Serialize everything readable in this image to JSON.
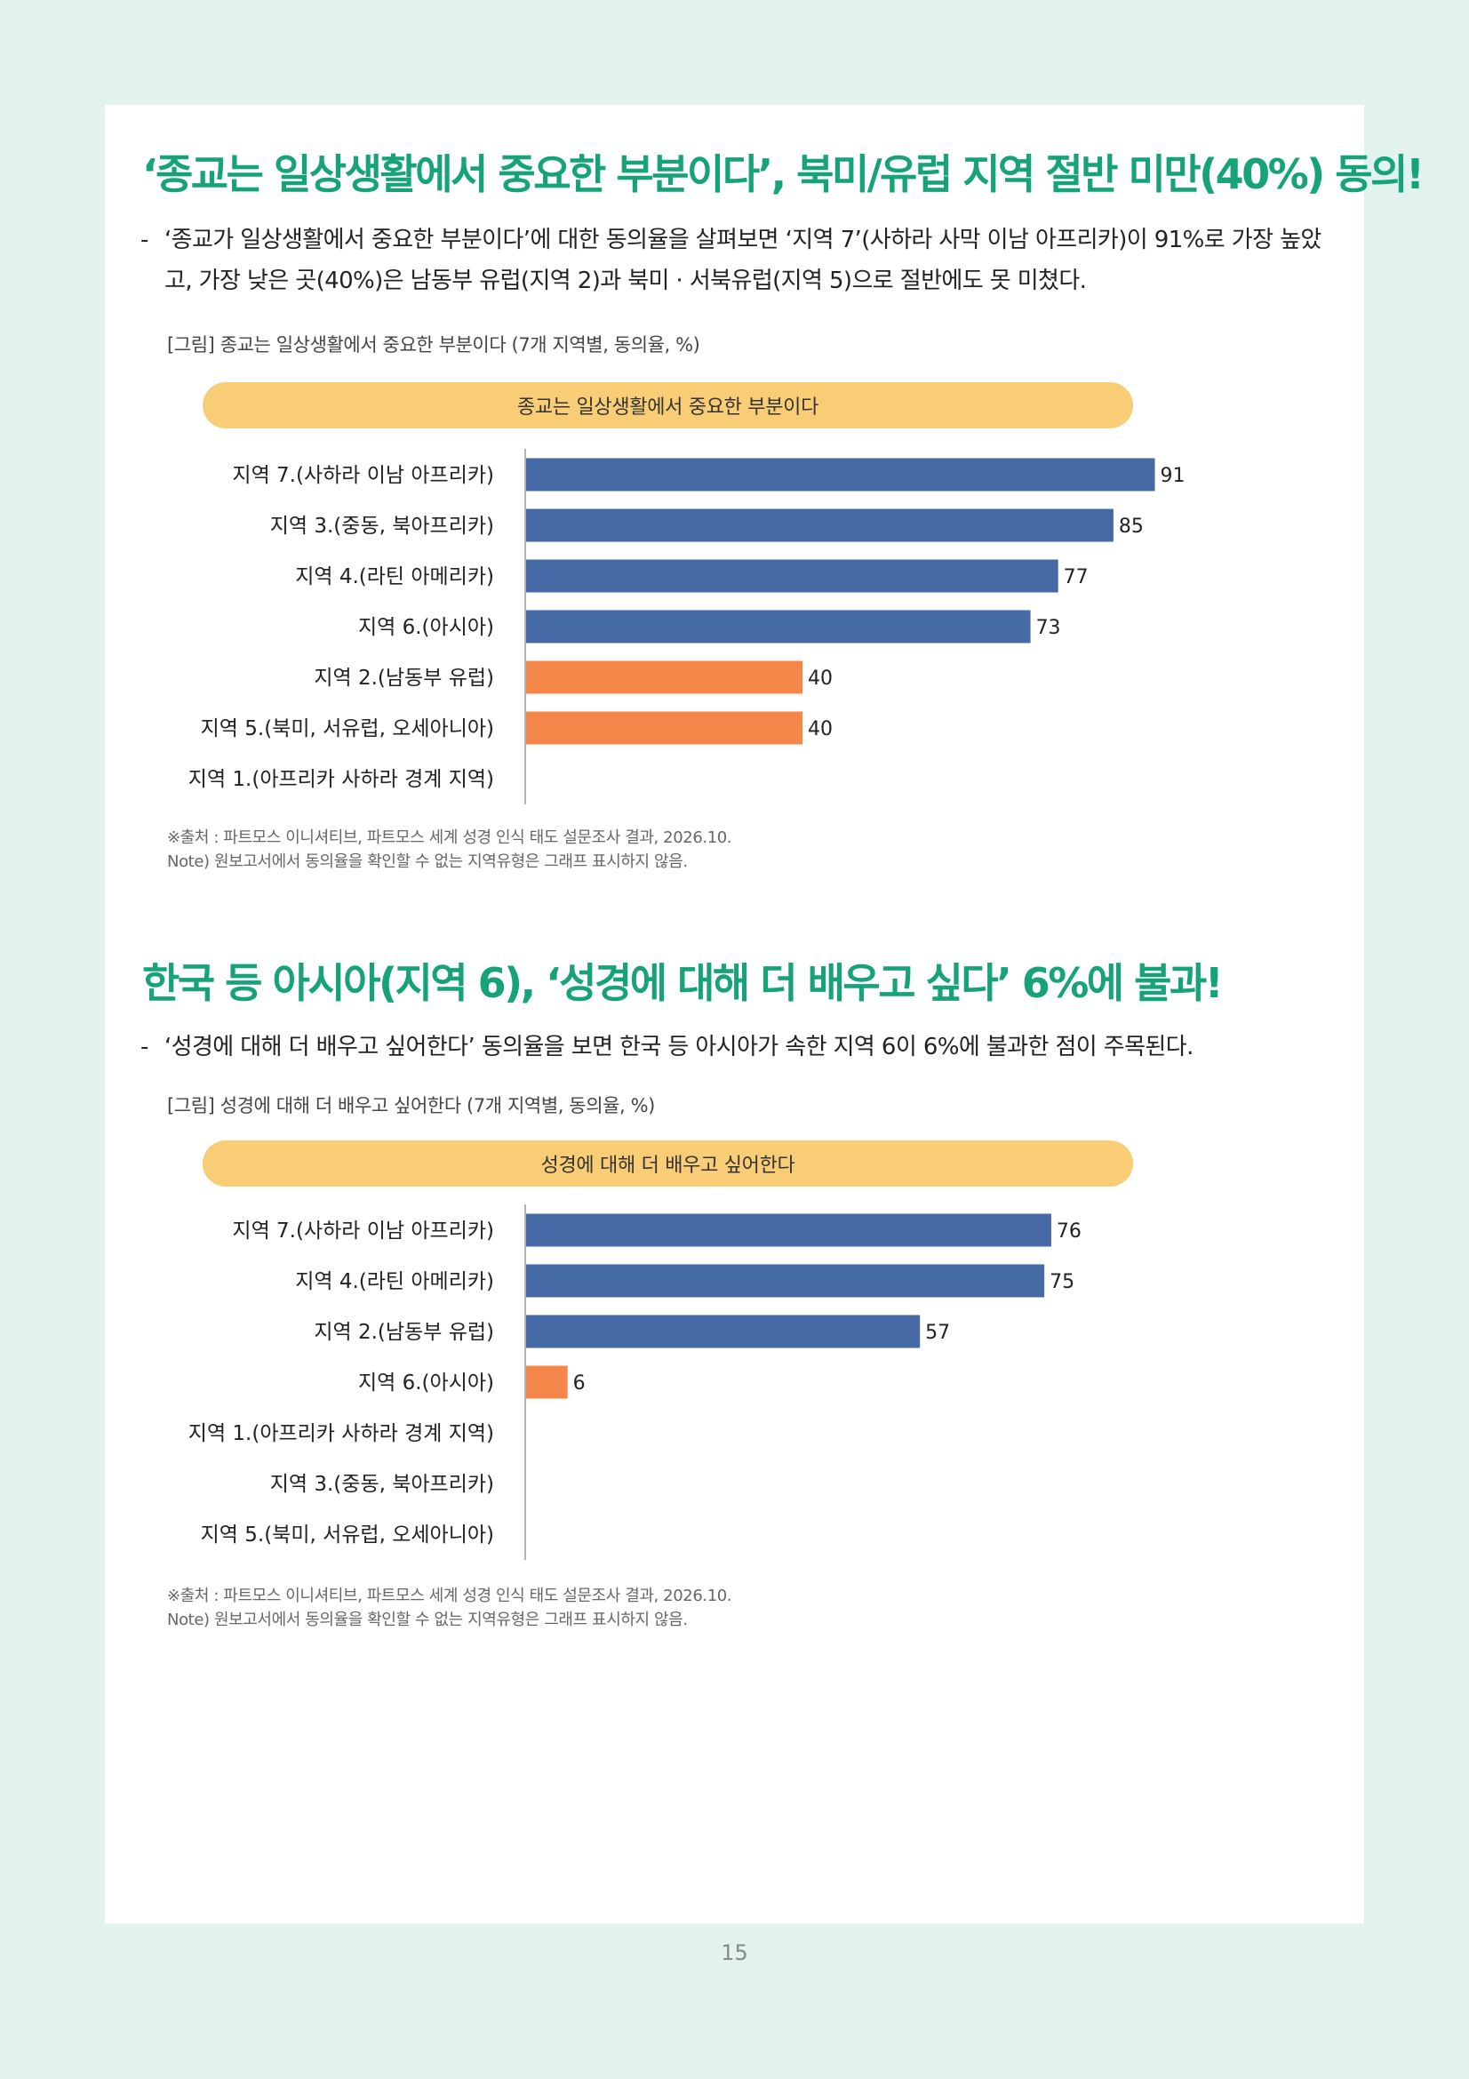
{
  "section1": {
    "heading": "‘종교는 일상생활에서 중요한 부분이다’, 북미/유럽 지역 절반 미만(40%) 동의!",
    "bullet_dash": "-",
    "body": "‘종교가 일상생활에서 중요한 부분이다’에 대한 동의율을 살펴보면 ‘지역 7’(사하라 사막 이남 아프리카)이 91%로 가장 높았고, 가장 낮은 곳(40%)은 남동부 유럽(지역 2)과 북미 · 서북유럽(지역 5)으로 절반에도 못 미쳤다.",
    "figure_caption": "[그림] 종교는 일상생활에서 중요한 부분이다 (7개 지역별, 동의율, %)",
    "chart_title": "종교는 일상생활에서 중요한 부분이다",
    "source_note": "※출처 : 파트모스 이니셔티브, 파트모스 세계 성경 인식 태도 설문조사 결과, 2026.10.",
    "note": "Note) 원보고서에서 동의율을 확인할 수 없는 지역유형은 그래프 표시하지 않음."
  },
  "section2": {
    "heading": "한국 등 아시아(지역 6), ‘성경에 대해 더 배우고 싶다’ 6%에 불과!",
    "bullet_dash": "-",
    "body": "‘성경에 대해 더 배우고 싶어한다’ 동의율을 보면 한국 등 아시아가 속한 지역 6이 6%에 불과한 점이 주목된다.",
    "figure_caption": "[그림] 성경에 대해 더 배우고 싶어한다 (7개 지역별, 동의율, %)",
    "chart_title": "성경에 대해 더 배우고 싶어한다",
    "source_note": "※출처 : 파트모스 이니셔티브, 파트모스 세계 성경 인식 태도 설문조사 결과, 2026.10.",
    "note": "Note) 원보고서에서 동의율을 확인할 수 없는 지역유형은 그래프 표시하지 않음."
  },
  "page_number": "15",
  "colors": {
    "heading_green": "#16a37a",
    "bar_blue": "#456aa5",
    "bar_orange": "#f4864a",
    "pill_yellow": "#f9cd76",
    "page_background": "#e2f3ef"
  },
  "chart_data": [
    {
      "type": "bar",
      "orientation": "horizontal",
      "title": "종교는 일상생활에서 중요한 부분이다",
      "categories": [
        "지역 7.(사하라 이남 아프리카)",
        "지역 3.(중동, 북아프리카)",
        "지역 4.(라틴 아메리카)",
        "지역 6.(아시아)",
        "지역 2.(남동부 유럽)",
        "지역 5.(북미, 서유럽, 오세아니아)",
        "지역 1.(아프리카 사하라 경계 지역)"
      ],
      "values": [
        91,
        85,
        77,
        73,
        40,
        40,
        null
      ],
      "bar_colors": [
        "#456aa5",
        "#456aa5",
        "#456aa5",
        "#456aa5",
        "#f4864a",
        "#f4864a",
        null
      ],
      "data_labels": true,
      "xlim": [
        0,
        100
      ],
      "grid": false
    },
    {
      "type": "bar",
      "orientation": "horizontal",
      "title": "성경에 대해 더 배우고 싶어한다",
      "categories": [
        "지역 7.(사하라 이남 아프리카)",
        "지역 4.(라틴 아메리카)",
        "지역 2.(남동부 유럽)",
        "지역 6.(아시아)",
        "지역 1.(아프리카 사하라 경계 지역)",
        "지역 3.(중동, 북아프리카)",
        "지역 5.(북미, 서유럽, 오세아니아)"
      ],
      "values": [
        76,
        75,
        57,
        6,
        null,
        null,
        null
      ],
      "bar_colors": [
        "#456aa5",
        "#456aa5",
        "#456aa5",
        "#f4864a",
        null,
        null,
        null
      ],
      "data_labels": true,
      "xlim": [
        0,
        100
      ],
      "grid": false
    }
  ]
}
